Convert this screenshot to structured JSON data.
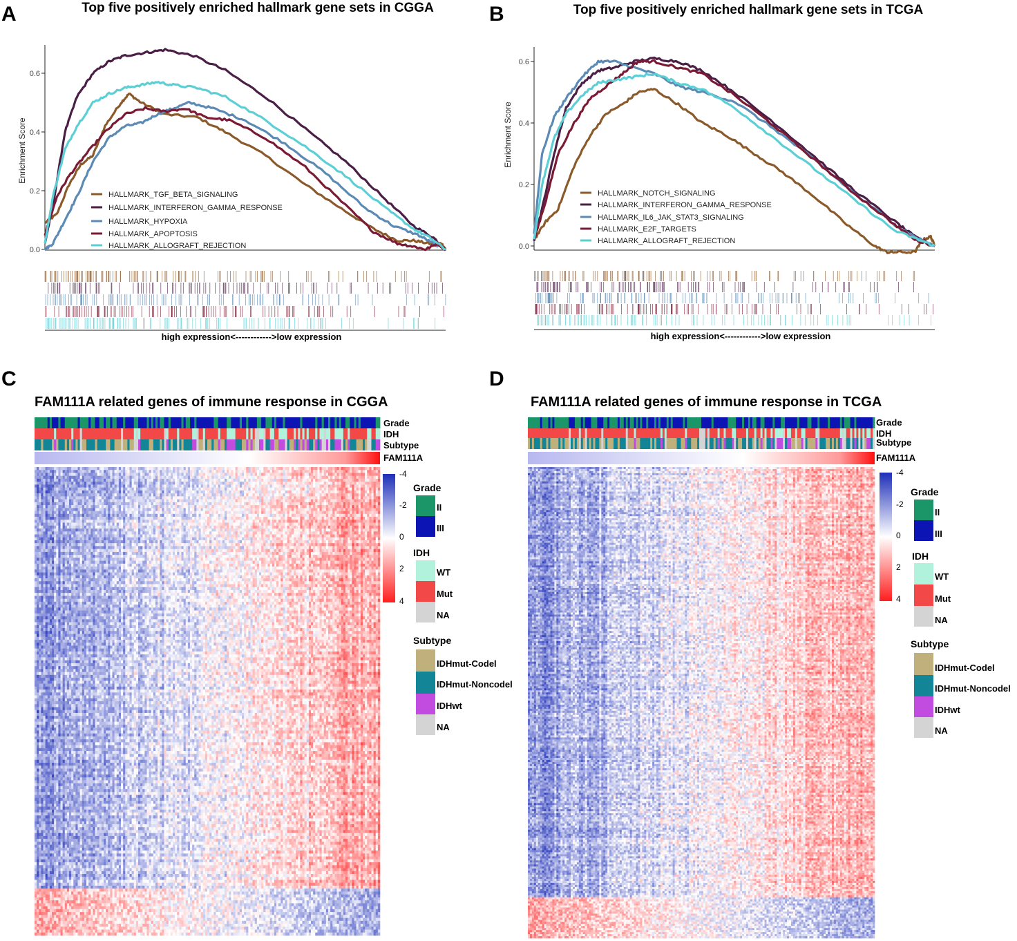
{
  "colors": {
    "TGF": "#8b5a2b",
    "NOTCH": "#8b5a2b",
    "IFNG": "#4a1e45",
    "HYPOXIA": "#5b8ab5",
    "IL6": "#5b8ab5",
    "APOPTOSIS": "#7a1a34",
    "E2F": "#7a1a34",
    "ALLOGRAFT": "#5ccfd6",
    "II": "#1b9668",
    "III": "#0c14b3",
    "WT": "#b0f2dc",
    "Mut": "#f24848",
    "NA": "#d4d4d4",
    "Codel": "#c0b07c",
    "Noncodel": "#128597",
    "IDHwt": "#c34ce0",
    "low": "#1e2fb8",
    "mid": "#ffffff",
    "high": "#ff1e1e"
  },
  "panels": [
    {
      "id": "A",
      "label": "A",
      "title": "Top five positively enriched hallmark gene sets in CGGA",
      "ylabel": "Enrichment Score",
      "xlabel": "high expression<------------>low expression",
      "yticks": [
        "0.0",
        "0.2",
        "0.4",
        "0.6"
      ],
      "legend": [
        "HALLMARK_TGF_BETA_SIGNALING",
        "HALLMARK_INTERFERON_GAMMA_RESPONSE",
        "HALLMARK_HYPOXIA",
        "HALLMARK_APOPTOSIS",
        "HALLMARK_ALLOGRAFT_REJECTION"
      ]
    },
    {
      "id": "B",
      "label": "B",
      "title": "Top five positively enriched hallmark gene sets in TCGA",
      "ylabel": "Enrichment Score",
      "xlabel": "high expression<------------>low expression",
      "yticks": [
        "0.0",
        "0.2",
        "0.4",
        "0.6"
      ],
      "legend": [
        "HALLMARK_NOTCH_SIGNALING",
        "HALLMARK_INTERFERON_GAMMA_RESPONSE",
        "HALLMARK_IL6_JAK_STAT3_SIGNALING",
        "HALLMARK_E2F_TARGETS",
        "HALLMARK_ALLOGRAFT_REJECTION"
      ]
    },
    {
      "id": "C",
      "label": "C",
      "title": "FAM111A related genes of immune response in CGGA",
      "annotations": [
        "Grade",
        "IDH",
        "Subtype",
        "FAM111A"
      ],
      "colorbar": [
        "-4",
        "-2",
        "0",
        "2",
        "4"
      ],
      "legend_grade_title": "Grade",
      "legend_grade": [
        "II",
        "III"
      ],
      "legend_idh_title": "IDH",
      "legend_idh": [
        "WT",
        "Mut",
        "NA"
      ],
      "legend_subtype_title": "Subtype",
      "legend_subtype": [
        "IDHmut-Codel",
        "IDHmut-Noncodel",
        "IDHwt",
        "NA"
      ]
    },
    {
      "id": "D",
      "label": "D",
      "title": "FAM111A related genes of immune response in TCGA",
      "annotations": [
        "Grade",
        "IDH",
        "Subtype",
        "FAM111A"
      ],
      "colorbar": [
        "-4",
        "-2",
        "0",
        "2",
        "4"
      ],
      "legend_grade_title": "Grade",
      "legend_grade": [
        "II",
        "III"
      ],
      "legend_idh_title": "IDH",
      "legend_idh": [
        "WT",
        "Mut",
        "NA"
      ],
      "legend_subtype_title": "Subtype",
      "legend_subtype": [
        "IDHmut-Codel",
        "IDHmut-Noncodel",
        "IDHwt",
        "NA"
      ]
    }
  ],
  "chart_data": [
    {
      "type": "line",
      "title": "Top five positively enriched hallmark gene sets in CGGA",
      "xlabel": "high expression<------------>low expression",
      "ylabel": "Enrichment Score",
      "xlim": [
        0,
        1
      ],
      "ylim": [
        0,
        0.69
      ],
      "series": [
        {
          "name": "HALLMARK_TGF_BETA_SIGNALING",
          "color_key": "TGF",
          "x": [
            0,
            0.03,
            0.06,
            0.09,
            0.12,
            0.15,
            0.19,
            0.21,
            0.24,
            0.3,
            0.38,
            0.45,
            0.55,
            0.65,
            0.75,
            0.82,
            0.88,
            0.92,
            0.96,
            0.99,
            1.0
          ],
          "y": [
            0.09,
            0.12,
            0.22,
            0.29,
            0.32,
            0.42,
            0.5,
            0.53,
            0.5,
            0.46,
            0.45,
            0.4,
            0.32,
            0.22,
            0.13,
            0.07,
            0.03,
            0.03,
            0.02,
            0.02,
            0.0
          ]
        },
        {
          "name": "HALLMARK_INTERFERON_GAMMA_RESPONSE",
          "color_key": "IFNG",
          "x": [
            0,
            0.02,
            0.05,
            0.08,
            0.12,
            0.16,
            0.2,
            0.25,
            0.3,
            0.37,
            0.45,
            0.55,
            0.65,
            0.75,
            0.85,
            0.92,
            0.97,
            1.0
          ],
          "y": [
            0.02,
            0.15,
            0.4,
            0.52,
            0.6,
            0.64,
            0.66,
            0.67,
            0.68,
            0.66,
            0.61,
            0.52,
            0.41,
            0.3,
            0.17,
            0.08,
            0.04,
            0.0
          ]
        },
        {
          "name": "HALLMARK_HYPOXIA",
          "color_key": "HYPOXIA",
          "x": [
            0,
            0.02,
            0.05,
            0.08,
            0.12,
            0.16,
            0.2,
            0.24,
            0.28,
            0.32,
            0.36,
            0.42,
            0.5,
            0.6,
            0.7,
            0.8,
            0.87,
            0.93,
            0.97,
            1.0
          ],
          "y": [
            0.0,
            0.02,
            0.1,
            0.18,
            0.3,
            0.38,
            0.42,
            0.43,
            0.46,
            0.48,
            0.5,
            0.48,
            0.44,
            0.36,
            0.26,
            0.14,
            0.08,
            0.05,
            0.02,
            0.0
          ]
        },
        {
          "name": "HALLMARK_APOPTOSIS",
          "color_key": "APOPTOSIS",
          "x": [
            0,
            0.03,
            0.06,
            0.1,
            0.15,
            0.2,
            0.25,
            0.3,
            0.35,
            0.4,
            0.46,
            0.55,
            0.65,
            0.75,
            0.82,
            0.88,
            0.92,
            0.95,
            0.98,
            1.0
          ],
          "y": [
            0.05,
            0.18,
            0.25,
            0.32,
            0.4,
            0.46,
            0.48,
            0.47,
            0.48,
            0.45,
            0.44,
            0.38,
            0.28,
            0.15,
            0.06,
            0.02,
            0.01,
            0.0,
            0.02,
            0.0
          ]
        },
        {
          "name": "HALLMARK_ALLOGRAFT_REJECTION",
          "color_key": "ALLOGRAFT",
          "x": [
            0,
            0.02,
            0.05,
            0.08,
            0.12,
            0.16,
            0.2,
            0.24,
            0.28,
            0.32,
            0.38,
            0.45,
            0.55,
            0.65,
            0.75,
            0.85,
            0.92,
            0.96,
            1.0
          ],
          "y": [
            0.02,
            0.18,
            0.34,
            0.42,
            0.5,
            0.53,
            0.55,
            0.56,
            0.57,
            0.56,
            0.55,
            0.52,
            0.44,
            0.35,
            0.25,
            0.14,
            0.07,
            0.04,
            0.0
          ]
        }
      ]
    },
    {
      "type": "line",
      "title": "Top five positively enriched hallmark gene sets in TCGA",
      "xlabel": "high expression<------------>low expression",
      "ylabel": "Enrichment Score",
      "xlim": [
        0,
        1
      ],
      "ylim": [
        0,
        0.66
      ],
      "series": [
        {
          "name": "HALLMARK_NOTCH_SIGNALING",
          "color_key": "NOTCH",
          "x": [
            0,
            0.03,
            0.06,
            0.1,
            0.14,
            0.18,
            0.22,
            0.26,
            0.3,
            0.36,
            0.42,
            0.48,
            0.55,
            0.62,
            0.7,
            0.78,
            0.85,
            0.88,
            0.9,
            0.95,
            0.97,
            0.99,
            1.0
          ],
          "y": [
            0.02,
            0.08,
            0.12,
            0.26,
            0.36,
            0.43,
            0.46,
            0.5,
            0.51,
            0.46,
            0.4,
            0.36,
            0.3,
            0.24,
            0.16,
            0.07,
            0.0,
            -0.02,
            -0.02,
            -0.02,
            0.02,
            0.03,
            0.0
          ]
        },
        {
          "name": "HALLMARK_INTERFERON_GAMMA_RESPONSE",
          "color_key": "IFNG",
          "x": [
            0,
            0.02,
            0.05,
            0.08,
            0.12,
            0.16,
            0.2,
            0.25,
            0.3,
            0.36,
            0.42,
            0.5,
            0.6,
            0.7,
            0.8,
            0.9,
            0.95,
            1.0
          ],
          "y": [
            0.02,
            0.12,
            0.3,
            0.45,
            0.53,
            0.57,
            0.58,
            0.6,
            0.61,
            0.6,
            0.57,
            0.5,
            0.4,
            0.29,
            0.18,
            0.08,
            0.03,
            0.0
          ]
        },
        {
          "name": "HALLMARK_IL6_JAK_STAT3_SIGNALING",
          "color_key": "IL6",
          "x": [
            0,
            0.02,
            0.05,
            0.08,
            0.12,
            0.16,
            0.2,
            0.25,
            0.3,
            0.36,
            0.42,
            0.5,
            0.6,
            0.7,
            0.8,
            0.9,
            0.95,
            1.0
          ],
          "y": [
            0.04,
            0.3,
            0.42,
            0.48,
            0.55,
            0.6,
            0.6,
            0.58,
            0.56,
            0.52,
            0.5,
            0.47,
            0.38,
            0.28,
            0.17,
            0.07,
            0.03,
            0.0
          ]
        },
        {
          "name": "HALLMARK_E2F_TARGETS",
          "color_key": "E2F",
          "x": [
            0,
            0.03,
            0.06,
            0.1,
            0.14,
            0.18,
            0.22,
            0.26,
            0.3,
            0.36,
            0.42,
            0.5,
            0.6,
            0.7,
            0.8,
            0.9,
            0.95,
            1.0
          ],
          "y": [
            0.02,
            0.15,
            0.3,
            0.4,
            0.48,
            0.52,
            0.56,
            0.6,
            0.6,
            0.58,
            0.56,
            0.49,
            0.39,
            0.28,
            0.17,
            0.07,
            0.02,
            0.0
          ]
        },
        {
          "name": "HALLMARK_ALLOGRAFT_REJECTION",
          "color_key": "ALLOGRAFT",
          "x": [
            0,
            0.02,
            0.05,
            0.08,
            0.12,
            0.16,
            0.2,
            0.25,
            0.3,
            0.36,
            0.42,
            0.5,
            0.6,
            0.7,
            0.8,
            0.9,
            0.96,
            1.0
          ],
          "y": [
            0.02,
            0.2,
            0.35,
            0.43,
            0.49,
            0.53,
            0.54,
            0.55,
            0.56,
            0.53,
            0.51,
            0.45,
            0.35,
            0.25,
            0.15,
            0.05,
            0.02,
            0.0
          ]
        }
      ]
    },
    {
      "type": "heatmap",
      "title": "FAM111A related genes of immune response in CGGA",
      "annotations": [
        "Grade",
        "IDH",
        "Subtype",
        "FAM111A"
      ],
      "color_scale": {
        "min": -4,
        "max": 4,
        "ticks": [
          -4,
          -2,
          0,
          2,
          4
        ]
      },
      "n_columns": 160,
      "n_rows": 160,
      "bottom_block_rows": 16
    },
    {
      "type": "heatmap",
      "title": "FAM111A related genes of immune response in TCGA",
      "annotations": [
        "Grade",
        "IDH",
        "Subtype",
        "FAM111A"
      ],
      "color_scale": {
        "min": -4,
        "max": 4,
        "ticks": [
          -4,
          -2,
          0,
          2,
          4
        ]
      },
      "n_columns": 170,
      "n_rows": 230,
      "bottom_block_rows": 20
    }
  ]
}
